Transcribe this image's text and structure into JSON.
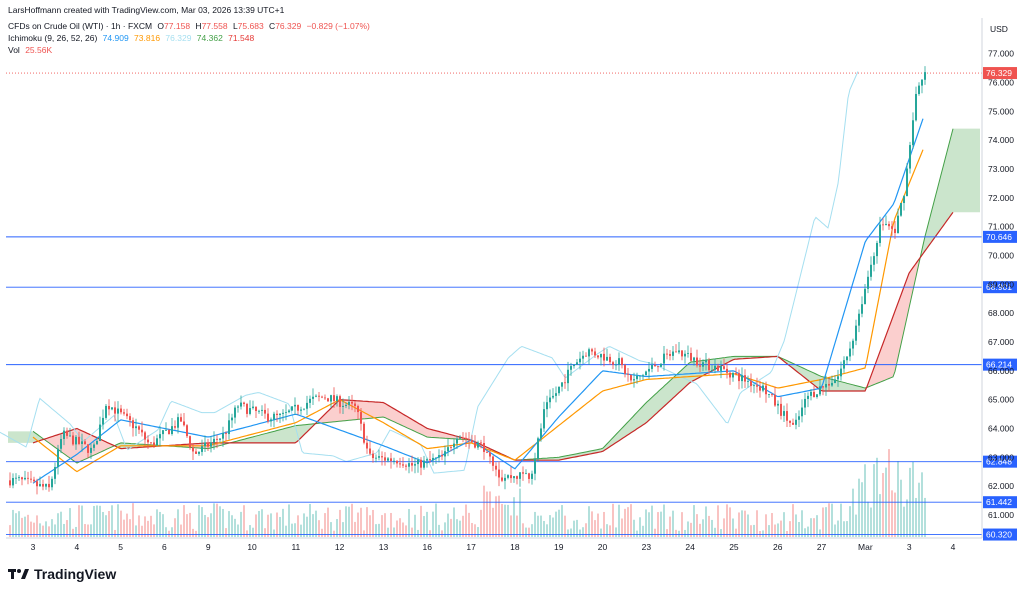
{
  "header": {
    "attribution": "LarsHoffmann created with TradingView.com, Mar 03, 2026 13:39 UTC+1",
    "symbol": "CFDs on Crude Oil (WTI) · 1h · FXCM",
    "open_label": "O",
    "open": "77.158",
    "high_label": "H",
    "high": "77.558",
    "low_label": "L",
    "low": "75.683",
    "close_label": "C",
    "close": "76.329",
    "change": "−0.829 (−1.07%)",
    "ichimoku_label": "Ichimoku (9, 26, 52, 26)",
    "ichimoku_values": [
      "74.909",
      "73.816",
      "76.329",
      "74.362",
      "71.548"
    ],
    "vol_label": "Vol",
    "vol_value": "25.56K"
  },
  "currency": "USD",
  "brand": {
    "name": "TradingView",
    "logo": "tradingview-logo-icon"
  },
  "colors": {
    "up": "#26a69a",
    "down": "#ef5350",
    "tenkan": "#2196f3",
    "kijun": "#ff9800",
    "chikou": "#a5dff0",
    "span_a": "#43a047",
    "span_b": "#c62828",
    "level_line": "#2962ff",
    "price_line": "#ef5350"
  },
  "chart_data": {
    "type": "candlestick",
    "title": "CFDs on Crude Oil (WTI) · 1h · FXCM",
    "ylim": [
      60.2,
      78.1
    ],
    "y_ticks": [
      61,
      62,
      63,
      64,
      65,
      66,
      67,
      68,
      69,
      70,
      71,
      72,
      73,
      74,
      75,
      76,
      77
    ],
    "x_ticks": [
      "3",
      "4",
      "5",
      "6",
      "9",
      "10",
      "11",
      "12",
      "13",
      "16",
      "17",
      "18",
      "19",
      "20",
      "23",
      "24",
      "25",
      "26",
      "27",
      "Mar",
      "3",
      "4"
    ],
    "current_price": "76.329",
    "horizontal_levels": [
      "70.646",
      "68.901",
      "66.214",
      "62.848",
      "61.442",
      "60.320"
    ],
    "price_path_keypoints": [
      [
        "3",
        62.2
      ],
      [
        "3",
        61.9
      ],
      [
        "4",
        63.8
      ],
      [
        "4",
        63.2
      ],
      [
        "5",
        64.9
      ],
      [
        "5",
        64.0
      ],
      [
        "6",
        63.4
      ],
      [
        "6",
        64.3
      ],
      [
        "9",
        63.1
      ],
      [
        "9",
        63.8
      ],
      [
        "10",
        64.8
      ],
      [
        "10",
        64.4
      ],
      [
        "11",
        64.4
      ],
      [
        "11",
        65.0
      ],
      [
        "12",
        65.1
      ],
      [
        "12",
        64.7
      ],
      [
        "13",
        63.0
      ],
      [
        "13",
        62.9
      ],
      [
        "16",
        62.7
      ],
      [
        "16",
        63.0
      ],
      [
        "17",
        63.8
      ],
      [
        "17",
        63.3
      ],
      [
        "18",
        62.3
      ],
      [
        "18",
        62.4
      ],
      [
        "19",
        64.6
      ],
      [
        "19",
        66.3
      ],
      [
        "20",
        66.7
      ],
      [
        "20",
        66.3
      ],
      [
        "23",
        65.6
      ],
      [
        "23",
        66.4
      ],
      [
        "24",
        66.7
      ],
      [
        "24",
        66.2
      ],
      [
        "25",
        66.1
      ],
      [
        "25",
        65.6
      ],
      [
        "26",
        65.4
      ],
      [
        "26",
        64.0
      ],
      [
        "27",
        65.1
      ],
      [
        "27",
        65.8
      ],
      [
        "Mar",
        66.9
      ],
      [
        "Mar",
        71.2
      ],
      [
        "3",
        70.8
      ],
      [
        "3",
        72.4
      ],
      [
        "3",
        75.5
      ],
      [
        "3",
        76.3
      ]
    ],
    "tenkan_keypoints": [
      [
        "3",
        62.1
      ],
      [
        "4",
        63.1
      ],
      [
        "5",
        64.3
      ],
      [
        "9",
        63.7
      ],
      [
        "11",
        64.5
      ],
      [
        "13",
        63.4
      ],
      [
        "16",
        62.8
      ],
      [
        "17",
        63.6
      ],
      [
        "18",
        62.6
      ],
      [
        "19",
        64.4
      ],
      [
        "20",
        66.0
      ],
      [
        "23",
        65.8
      ],
      [
        "25",
        66.0
      ],
      [
        "26",
        65.1
      ],
      [
        "27",
        65.4
      ],
      [
        "Mar",
        70.5
      ],
      [
        "3",
        71.8
      ],
      [
        "3",
        74.9
      ]
    ],
    "kijun_keypoints": [
      [
        "3",
        63.7
      ],
      [
        "4",
        62.5
      ],
      [
        "5",
        63.4
      ],
      [
        "9",
        63.4
      ],
      [
        "11",
        64.2
      ],
      [
        "12",
        65.0
      ],
      [
        "13",
        64.2
      ],
      [
        "16",
        63.3
      ],
      [
        "17",
        63.5
      ],
      [
        "18",
        62.9
      ],
      [
        "19",
        64.1
      ],
      [
        "20",
        65.3
      ],
      [
        "23",
        65.7
      ],
      [
        "25",
        65.9
      ],
      [
        "26",
        65.4
      ],
      [
        "27",
        65.7
      ],
      [
        "Mar",
        66.1
      ],
      [
        "3",
        71.2
      ],
      [
        "3",
        73.8
      ]
    ],
    "senkou_a_keypoints": [
      [
        "3",
        63.9
      ],
      [
        "4",
        62.8
      ],
      [
        "5",
        63.5
      ],
      [
        "9",
        63.3
      ],
      [
        "11",
        64.1
      ],
      [
        "13",
        64.4
      ],
      [
        "16",
        63.7
      ],
      [
        "17",
        63.6
      ],
      [
        "18",
        62.9
      ],
      [
        "19",
        63.0
      ],
      [
        "20",
        63.3
      ],
      [
        "23",
        64.9
      ],
      [
        "24",
        66.3
      ],
      [
        "25",
        66.5
      ],
      [
        "26",
        66.5
      ],
      [
        "27",
        65.8
      ],
      [
        "Mar",
        65.4
      ],
      [
        "3",
        65.8
      ],
      [
        "3",
        70.6
      ],
      [
        "4",
        74.4
      ]
    ],
    "senkou_b_keypoints": [
      [
        "3",
        63.5
      ],
      [
        "4",
        64.0
      ],
      [
        "5",
        63.3
      ],
      [
        "9",
        63.5
      ],
      [
        "11",
        63.5
      ],
      [
        "12",
        65.0
      ],
      [
        "13",
        64.9
      ],
      [
        "16",
        64.0
      ],
      [
        "17",
        63.6
      ],
      [
        "18",
        62.9
      ],
      [
        "19",
        62.9
      ],
      [
        "20",
        63.2
      ],
      [
        "23",
        64.2
      ],
      [
        "24",
        65.6
      ],
      [
        "25",
        66.4
      ],
      [
        "26",
        66.5
      ],
      [
        "27",
        65.3
      ],
      [
        "Mar",
        65.3
      ],
      [
        "3",
        69.4
      ],
      [
        "4",
        71.5
      ]
    ],
    "volume_note": "Vol 25.56K"
  }
}
